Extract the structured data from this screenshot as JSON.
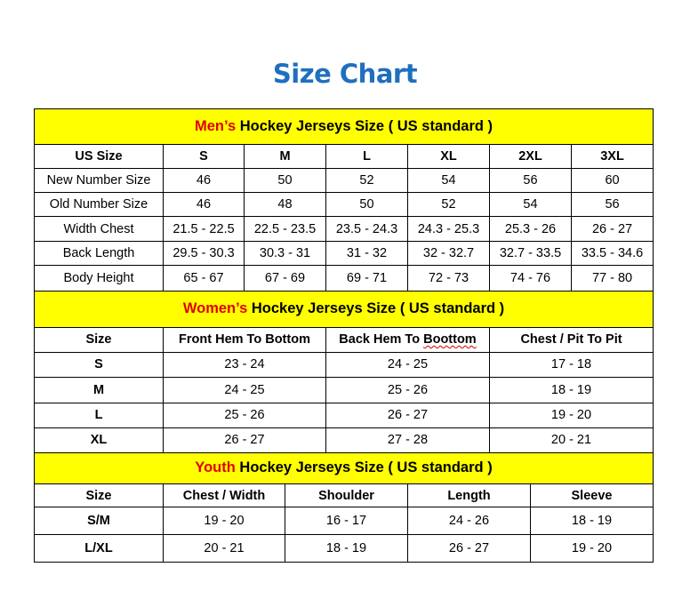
{
  "title": "Size Chart",
  "colors": {
    "title": "#1f6fbf",
    "header_bg": "#ffff00",
    "highlight": "#e00000"
  },
  "sections": [
    {
      "id": "men",
      "heading_highlight": "Men’s",
      "heading_rest": " Hockey Jerseys Size ( US standard )",
      "columns": [
        "US Size",
        "S",
        "M",
        "L",
        "XL",
        "2XL",
        "3XL"
      ],
      "rows": [
        [
          "New Number Size",
          "46",
          "50",
          "52",
          "54",
          "56",
          "60"
        ],
        [
          "Old Number Size",
          "46",
          "48",
          "50",
          "52",
          "54",
          "56"
        ],
        [
          "Width Chest",
          "21.5 - 22.5",
          "22.5 - 23.5",
          "23.5 - 24.3",
          "24.3 - 25.3",
          "25.3 - 26",
          "26 - 27"
        ],
        [
          "Back Length",
          "29.5 - 30.3",
          "30.3 - 31",
          "31 - 32",
          "32 - 32.7",
          "32.7 - 33.5",
          "33.5 - 34.6"
        ],
        [
          "Body Height",
          "65 - 67",
          "67 - 69",
          "69 - 71",
          "72 - 73",
          "74 - 76",
          "77 - 80"
        ]
      ]
    },
    {
      "id": "women",
      "heading_highlight": "Women’s",
      "heading_rest": " Hockey Jerseys Size ( US standard )",
      "columns": [
        "Size",
        "Front Hem To Bottom",
        "Back Hem To Boottom",
        "Chest / Pit To Pit"
      ],
      "rows": [
        [
          "S",
          "23 - 24",
          "24 - 25",
          "17 - 18"
        ],
        [
          "M",
          "24 - 25",
          "25 - 26",
          "18 - 19"
        ],
        [
          "L",
          "25 - 26",
          "26 - 27",
          "19 - 20"
        ],
        [
          "XL",
          "26 - 27",
          "27 - 28",
          "20 - 21"
        ]
      ]
    },
    {
      "id": "youth",
      "heading_highlight": "Youth",
      "heading_rest": " Hockey Jerseys Size ( US standard )",
      "columns": [
        "Size",
        "Chest / Width",
        "Shoulder",
        "Length",
        "Sleeve"
      ],
      "rows": [
        [
          "S/M",
          "19 - 20",
          "16 - 17",
          "24 - 26",
          "18 - 19"
        ],
        [
          "L/XL",
          "20 - 21",
          "18 - 19",
          "26 - 27",
          "19 - 20"
        ]
      ]
    }
  ]
}
